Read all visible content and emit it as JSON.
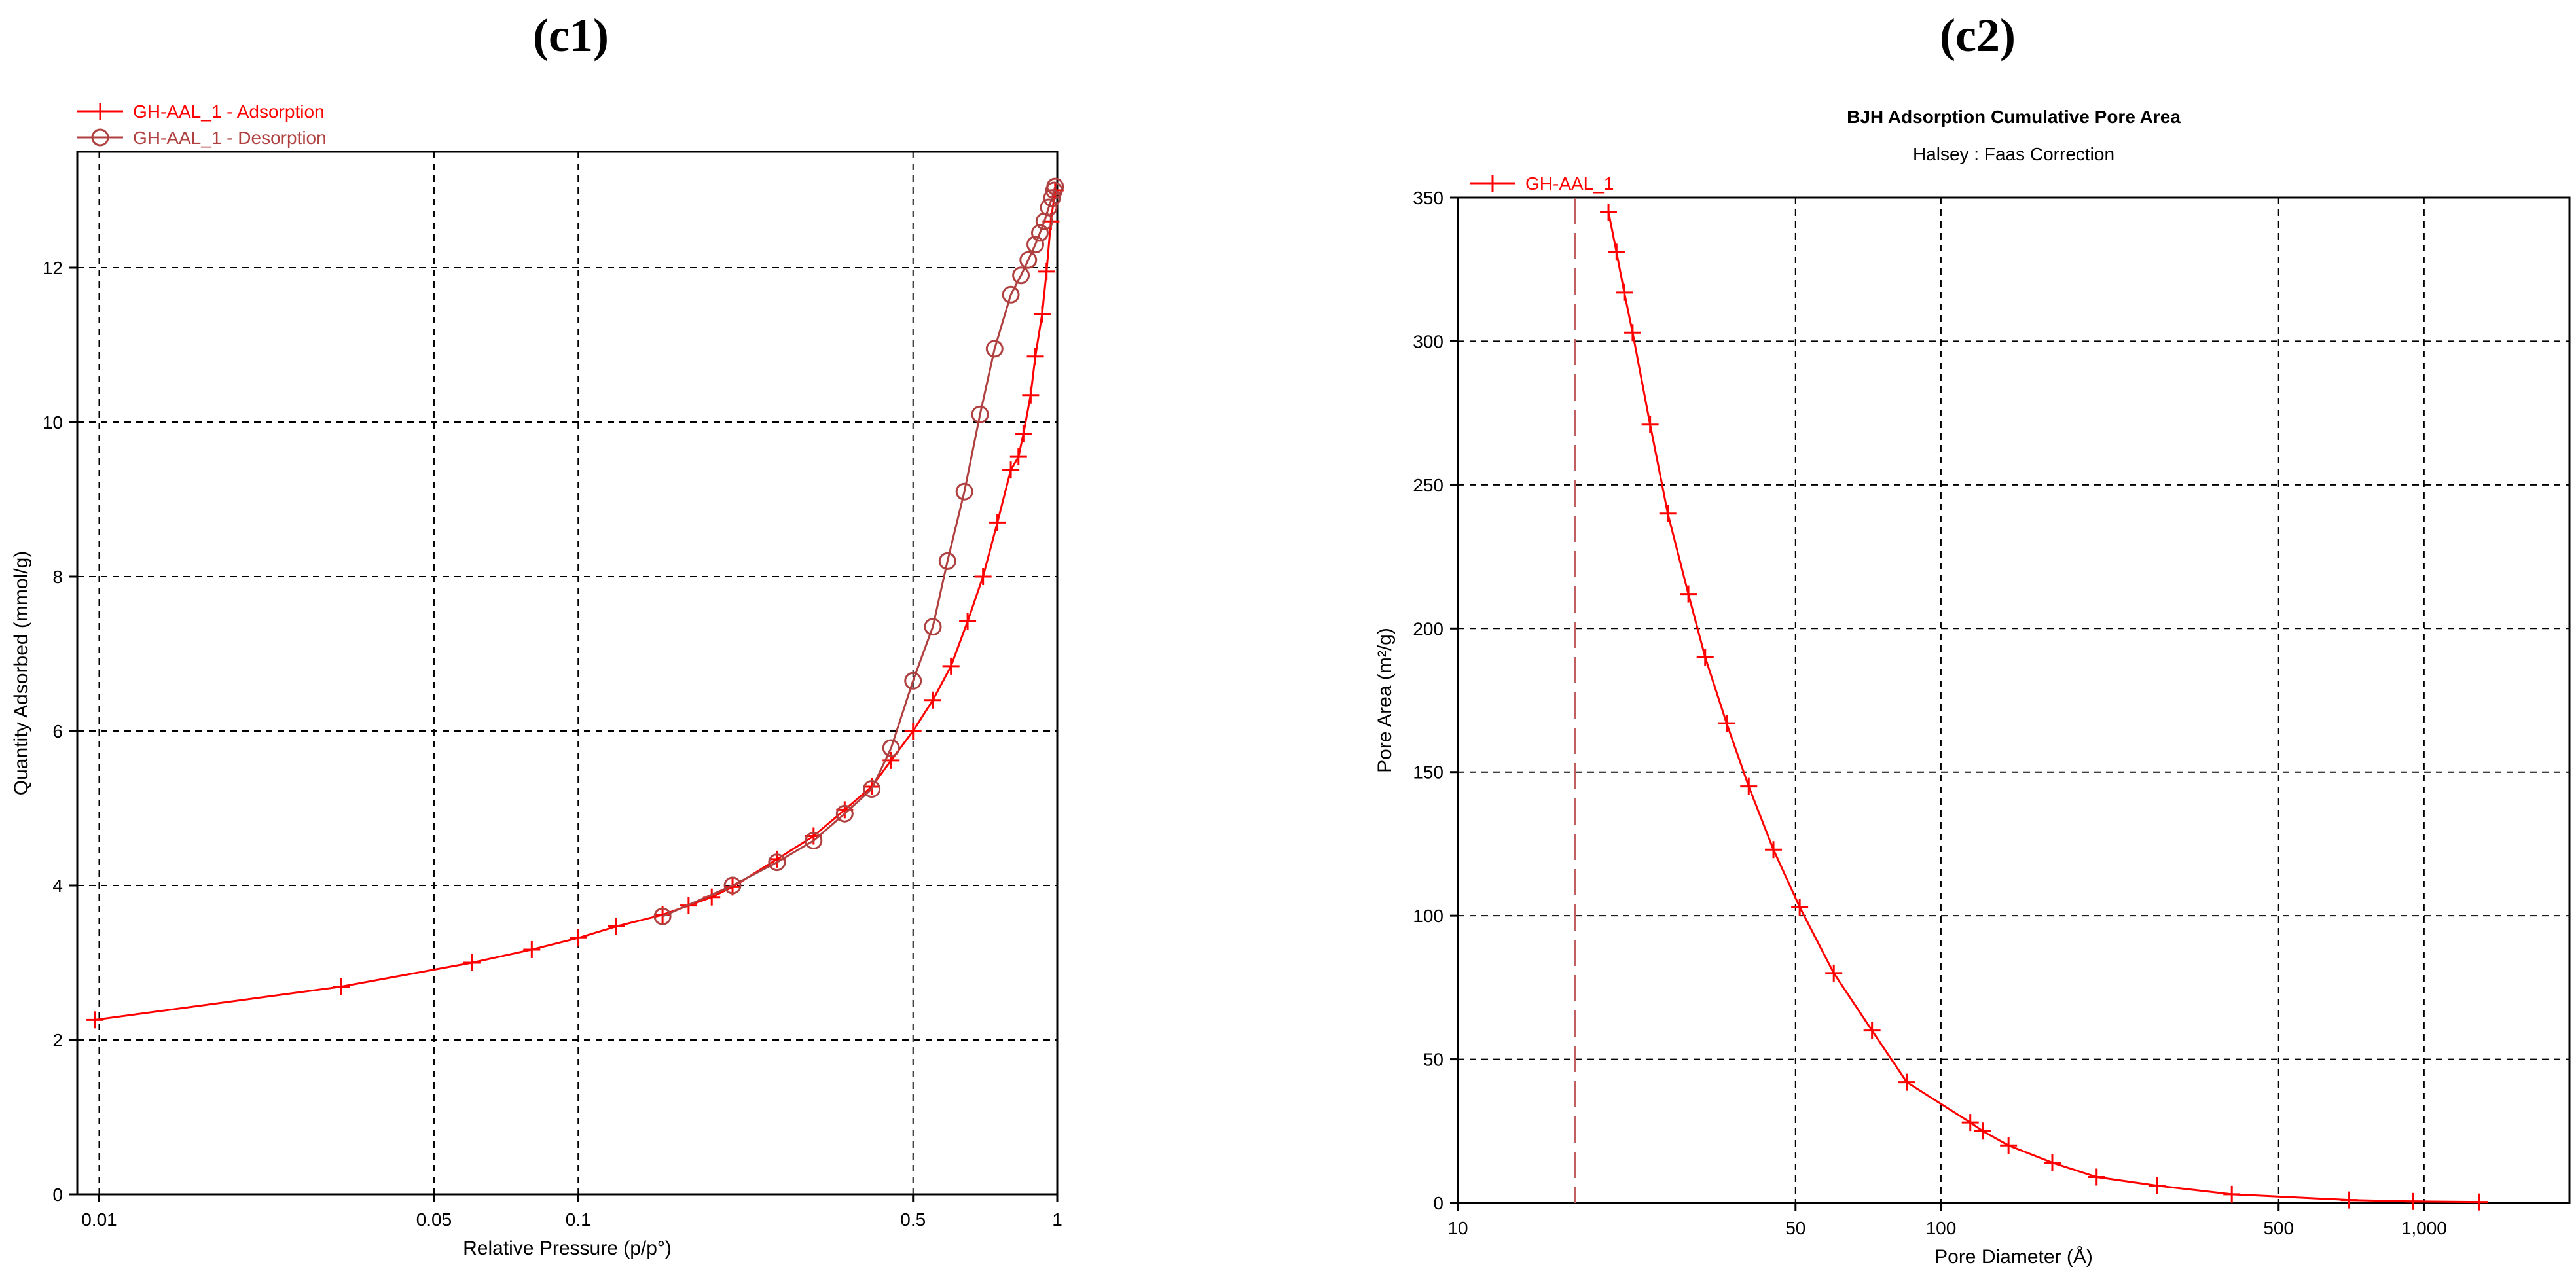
{
  "panels": [
    {
      "label": "(c1)",
      "chart_data": {
        "type": "line",
        "xscale": "log",
        "xlabel": "Relative Pressure (p/p°)",
        "ylabel": "Quantity Adsorbed (mmol/g)",
        "xlim": [
          0.009,
          1.0
        ],
        "ylim": [
          0,
          13.5
        ],
        "xticks": [
          0.01,
          0.05,
          0.1,
          0.5,
          1
        ],
        "xtick_labels": [
          "0.01",
          "0.05",
          "0.1",
          "0.5",
          "1"
        ],
        "yticks": [
          0,
          2,
          4,
          6,
          8,
          10,
          12
        ],
        "grid": true,
        "legend_position": "top-left",
        "series": [
          {
            "name": "GH-AAL_1 - Adsorption",
            "marker": "plus",
            "color": "#ff0000",
            "x": [
              0.0098,
              0.032,
              0.06,
              0.08,
              0.1,
              0.12,
              0.15,
              0.17,
              0.19,
              0.21,
              0.26,
              0.31,
              0.36,
              0.41,
              0.45,
              0.5,
              0.55,
              0.6,
              0.65,
              0.7,
              0.75,
              0.8,
              0.83,
              0.85,
              0.88,
              0.9,
              0.93,
              0.95,
              0.97,
              0.99
            ],
            "y": [
              2.26,
              2.69,
              3.0,
              3.17,
              3.32,
              3.47,
              3.62,
              3.74,
              3.85,
              3.98,
              4.34,
              4.64,
              4.98,
              5.28,
              5.62,
              6.0,
              6.4,
              6.84,
              7.42,
              8.0,
              8.7,
              9.38,
              9.55,
              9.85,
              10.35,
              10.85,
              11.4,
              11.95,
              12.6,
              13.0
            ]
          },
          {
            "name": "GH-AAL_1 - Desorption",
            "marker": "circle",
            "color": "#b04040",
            "x": [
              0.99,
              0.985,
              0.975,
              0.96,
              0.94,
              0.92,
              0.9,
              0.87,
              0.84,
              0.8,
              0.74,
              0.69,
              0.64,
              0.59,
              0.55,
              0.5,
              0.45,
              0.41,
              0.36,
              0.31,
              0.26,
              0.21,
              0.15
            ],
            "y": [
              13.05,
              13.0,
              12.9,
              12.78,
              12.6,
              12.45,
              12.3,
              12.1,
              11.9,
              11.65,
              10.95,
              10.1,
              9.1,
              8.2,
              7.35,
              6.65,
              5.78,
              5.25,
              4.93,
              4.58,
              4.3,
              4.0,
              3.6
            ]
          }
        ]
      }
    },
    {
      "label": "(c2)",
      "chart_data": {
        "type": "line",
        "xscale": "log",
        "title": "BJH Adsorption Cumulative Pore Area",
        "subtitle": "Halsey : Faas Correction",
        "xlabel": "Pore Diameter (Å)",
        "ylabel": "Pore Area (m²/g)",
        "xlim": [
          10,
          2000
        ],
        "ylim": [
          0,
          350
        ],
        "xticks": [
          10,
          50,
          100,
          500,
          1000
        ],
        "xtick_labels": [
          "10",
          "50",
          "100",
          "500",
          "1,000"
        ],
        "yticks": [
          0,
          50,
          100,
          150,
          200,
          250,
          300,
          350
        ],
        "grid": true,
        "legend_position": "top-left",
        "reference_line_x": 17.5,
        "series": [
          {
            "name": "GH-AAL_1",
            "marker": "plus",
            "color": "#ff0000",
            "x": [
              20.5,
              21.3,
              22.1,
              23.0,
              25.0,
              27.2,
              30.0,
              32.5,
              36.0,
              40.0,
              45.0,
              51.0,
              60.0,
              72.0,
              85.0,
              115,
              122,
              138,
              170,
              210,
              280,
              400,
              700,
              950,
              1300
            ],
            "y": [
              345,
              331,
              317,
              303,
              271,
              240,
              212,
              190,
              167,
              145,
              123,
              103,
              80,
              60,
              42,
              28,
              25,
              20,
              14,
              9,
              6,
              3,
              1,
              0.5,
              0.3
            ]
          }
        ]
      }
    }
  ]
}
